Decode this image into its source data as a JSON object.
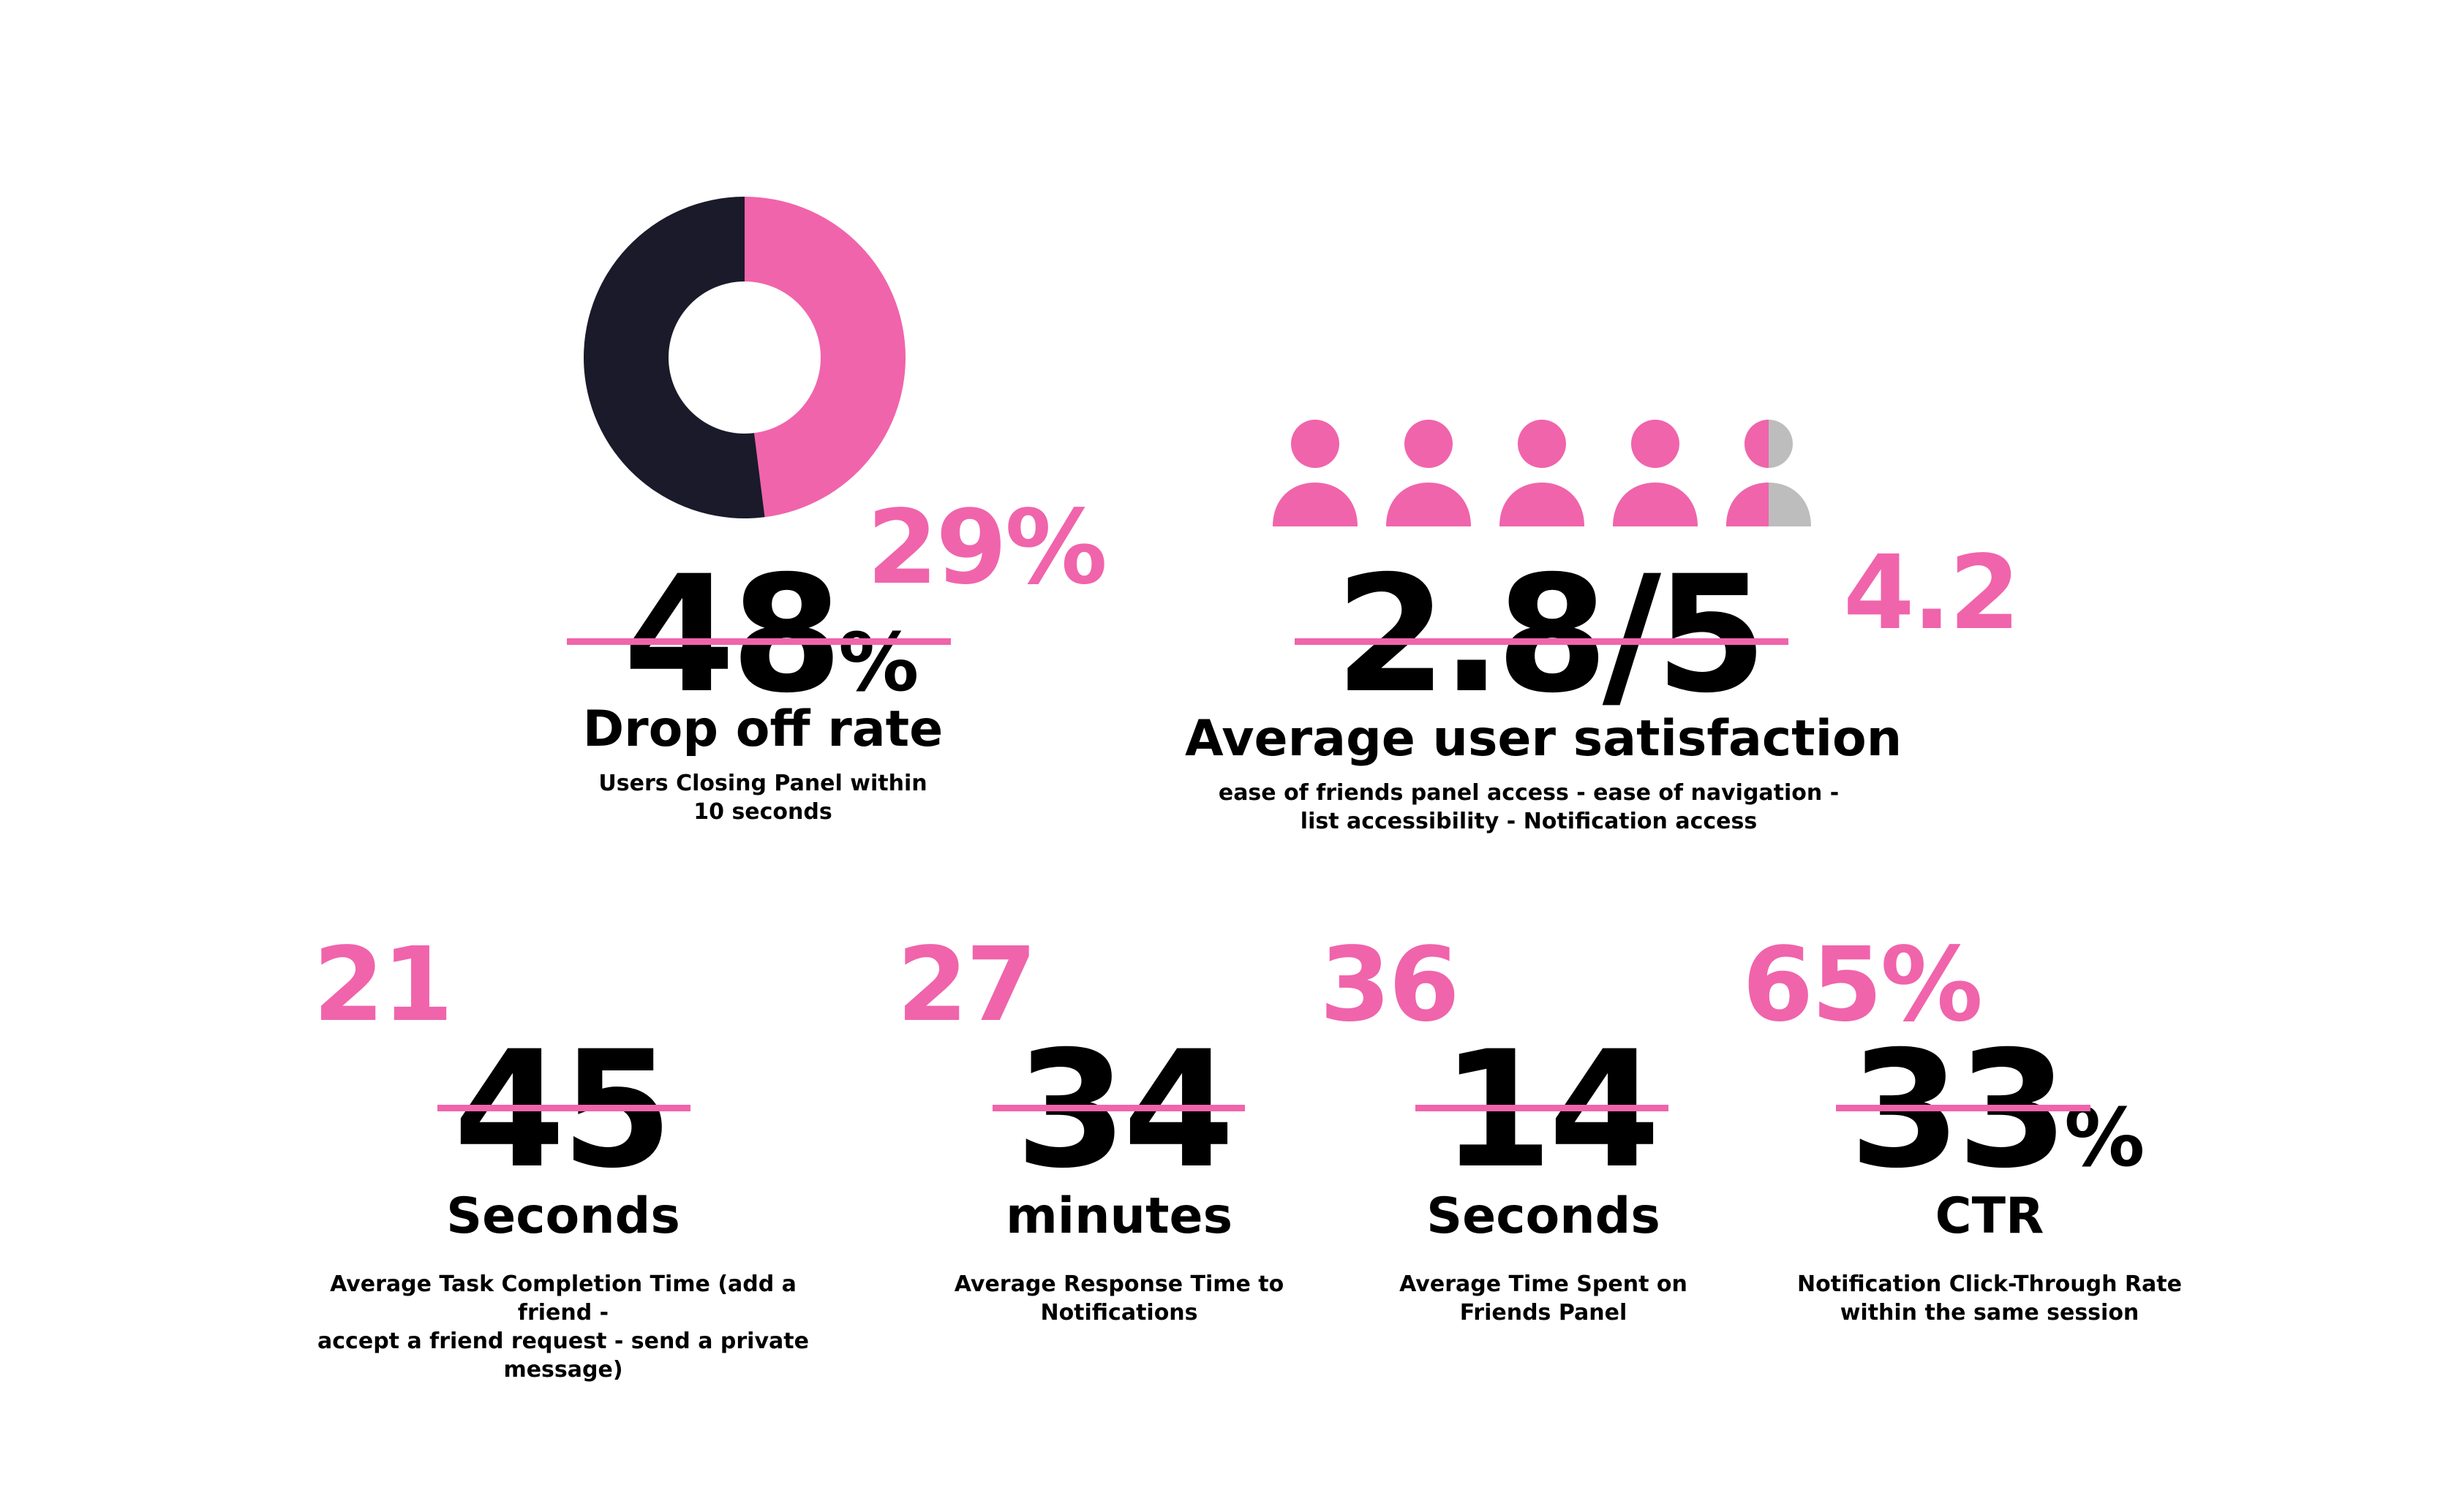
{
  "colors": {
    "accent": "#f064ab",
    "dark": "#1b1a2a",
    "gray": "#bdbdbd",
    "text": "#000000"
  },
  "donut": {
    "segments": [
      {
        "value": 48,
        "color": "#f064ab"
      },
      {
        "value": 52,
        "color": "#1b1a2a"
      }
    ]
  },
  "users_rating": {
    "icon": "person-icon",
    "filled": 4.5,
    "total": 5
  },
  "metrics": {
    "drop_off": {
      "new_value": "29%",
      "old_number": "48",
      "old_suffix": "%",
      "label": "Drop off rate",
      "desc_line1": "Users Closing Panel within",
      "desc_line2": "10 seconds"
    },
    "satisfaction": {
      "new_value": "4.2",
      "old_value": "2.8/5",
      "label": "Average user satisfaction",
      "desc_line1": "ease of friends panel access - ease of navigation -",
      "desc_line2": "list accessibility - Notification access"
    },
    "task_time": {
      "new_value": "21",
      "old_value": "45",
      "label": "Seconds",
      "desc_line1": "Average Task Completion Time (add a friend -",
      "desc_line2": "accept a friend request - send a private message)"
    },
    "response_time": {
      "new_value": "27",
      "old_value": "34",
      "label": "minutes",
      "desc_line1": "Average Response Time to",
      "desc_line2": "Notifications"
    },
    "time_spent": {
      "new_value": "36",
      "old_value": "14",
      "label": "Seconds",
      "desc_line1": "Average Time Spent on",
      "desc_line2": "Friends Panel"
    },
    "ctr": {
      "new_value": "65%",
      "old_number": "33",
      "old_suffix": "%",
      "label": "CTR",
      "desc_line1": "Notification Click-Through Rate",
      "desc_line2": "within the same session"
    }
  }
}
